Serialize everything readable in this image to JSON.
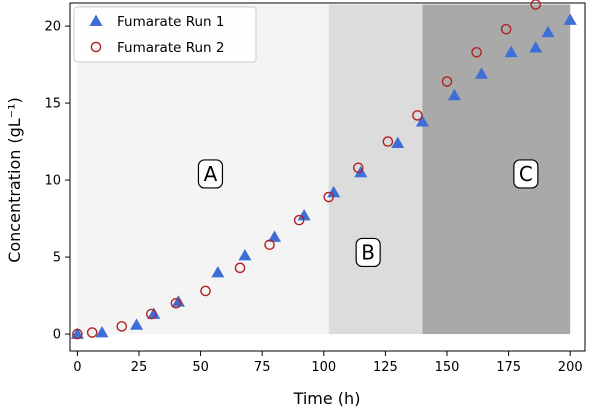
{
  "chart_data": {
    "type": "scatter",
    "xlabel": "Time (h)",
    "ylabel": "Concentration",
    "ylabel_unit": "(gL⁻¹)",
    "xlim": [
      -3,
      206
    ],
    "ylim": [
      -1.1,
      21.5
    ],
    "xticks": [
      0,
      25,
      50,
      75,
      100,
      125,
      150,
      175,
      200
    ],
    "yticks": [
      0,
      5,
      10,
      15,
      20
    ],
    "legend_position": "top-left",
    "regions": [
      {
        "label": "A",
        "x_start": 0,
        "x_end": 102,
        "color": "#f4f4f4",
        "label_x": 54,
        "label_y": 10.4
      },
      {
        "label": "B",
        "x_start": 102,
        "x_end": 140,
        "color": "#dcdcdc",
        "label_x": 118,
        "label_y": 5.3
      },
      {
        "label": "C",
        "x_start": 140,
        "x_end": 200,
        "color": "#a9a9a9",
        "label_x": 182,
        "label_y": 10.4
      }
    ],
    "series": [
      {
        "name": "Fumarate Run 1",
        "marker": "triangle",
        "color": "#3d6fd6",
        "x": [
          0,
          10,
          24,
          31,
          41,
          57,
          68,
          80,
          92,
          104,
          115,
          130,
          140,
          153,
          164,
          176,
          186,
          191,
          200
        ],
        "y": [
          0.0,
          0.1,
          0.6,
          1.3,
          2.1,
          4.0,
          5.1,
          6.3,
          7.7,
          9.2,
          10.5,
          12.4,
          13.8,
          15.5,
          16.9,
          18.3,
          18.6,
          19.6,
          20.4
        ]
      },
      {
        "name": "Fumarate Run 2",
        "marker": "open-circle",
        "color": "#b22222",
        "x": [
          0,
          6,
          18,
          30,
          40,
          52,
          66,
          78,
          90,
          102,
          114,
          126,
          138,
          150,
          162,
          174,
          186
        ],
        "y": [
          0.0,
          0.1,
          0.5,
          1.3,
          2.0,
          2.8,
          4.3,
          5.8,
          7.4,
          8.9,
          10.8,
          12.5,
          14.2,
          16.4,
          18.3,
          19.8,
          21.4
        ]
      }
    ]
  }
}
